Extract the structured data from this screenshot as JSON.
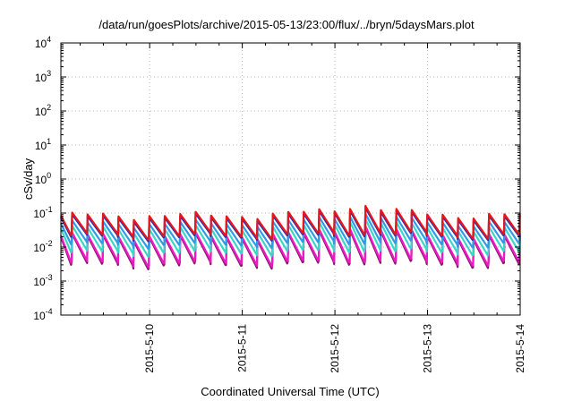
{
  "chart_data": {
    "type": "line",
    "title": "/data/run/goesPlots/archive/2015-05-13/23:00/flux/../bryn/5daysMars.plot",
    "xlabel": "Coordinated Universal Time (UTC)",
    "ylabel": "cSv/day",
    "x_range": [
      "2015-05-09 01:00",
      "2015-05-14 00:00"
    ],
    "x_ticks": [
      "2015-5-10",
      "2015-5-11",
      "2015-5-12",
      "2015-5-13",
      "2015-5-14"
    ],
    "y_scale": "log",
    "ylim": [
      0.0001,
      10000
    ],
    "y_ticks": [
      {
        "base": "10",
        "exp": "-4"
      },
      {
        "base": "10",
        "exp": "-3"
      },
      {
        "base": "10",
        "exp": "-2"
      },
      {
        "base": "10",
        "exp": "-1"
      },
      {
        "base": "10",
        "exp": "0"
      },
      {
        "base": "10",
        "exp": "1"
      },
      {
        "base": "10",
        "exp": "2"
      },
      {
        "base": "10",
        "exp": "3"
      },
      {
        "base": "10",
        "exp": "4"
      }
    ],
    "grid": true,
    "legend": "none",
    "series_colors": [
      "#e8161b",
      "#1f2fb8",
      "#2f9ae6",
      "#3ad6c8",
      "#ee18c8",
      "#8a1868"
    ],
    "pattern": {
      "description": "sawtooth daily-cycle dose rates, 4-hour period",
      "period_hours": 4,
      "peak_values": [
        0.085,
        0.075,
        0.05,
        0.035,
        0.022,
        0.02
      ],
      "trough_values": [
        0.022,
        0.02,
        0.012,
        0.007,
        0.0035,
        0.003
      ],
      "event_peak_time": "2015-05-12 06:00",
      "event_peak_value": 0.2
    }
  }
}
